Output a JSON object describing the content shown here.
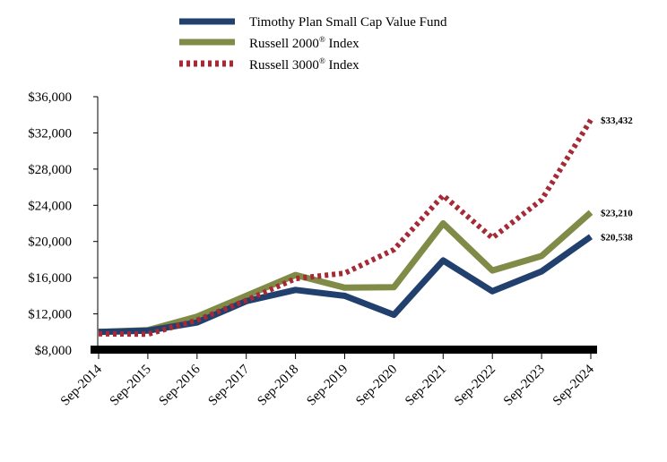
{
  "chart_data": {
    "type": "line",
    "title": "",
    "xlabel": "",
    "ylabel": "",
    "categories": [
      "Sep-2014",
      "Sep-2015",
      "Sep-2016",
      "Sep-2017",
      "Sep-2018",
      "Sep-2019",
      "Sep-2020",
      "Sep-2021",
      "Sep-2022",
      "Sep-2023",
      "Sep-2024"
    ],
    "y_ticks": [
      "$8,000",
      "$12,000",
      "$16,000",
      "$20,000",
      "$24,000",
      "$28,000",
      "$32,000",
      "$36,000"
    ],
    "ylim": [
      8000,
      36000
    ],
    "ytick_step": 4000,
    "grid": false,
    "legend_position": "top-center",
    "series": [
      {
        "key": "timothy",
        "name": "Timothy Plan Small Cap Value Fund",
        "color": "#22406E",
        "style": "solid",
        "values": [
          10000,
          10150,
          11050,
          13400,
          14650,
          14000,
          11900,
          17900,
          14500,
          16700,
          20538
        ],
        "end_label": "$20,538"
      },
      {
        "key": "r2000",
        "name": "Russell 2000",
        "name_sup": "®",
        "name_suffix": " Index",
        "color": "#7F8B46",
        "style": "solid",
        "values": [
          10000,
          10200,
          11700,
          14000,
          16300,
          14900,
          14950,
          22000,
          16800,
          18400,
          23210
        ],
        "end_label": "$23,210"
      },
      {
        "key": "r3000",
        "name": "Russell 3000",
        "name_sup": "®",
        "name_suffix": " Index",
        "color": "#A52A35",
        "style": "dotted",
        "values": [
          9800,
          9750,
          11300,
          13500,
          15900,
          16500,
          19100,
          25100,
          20400,
          24600,
          33432
        ],
        "end_label": "$33,432"
      }
    ]
  }
}
